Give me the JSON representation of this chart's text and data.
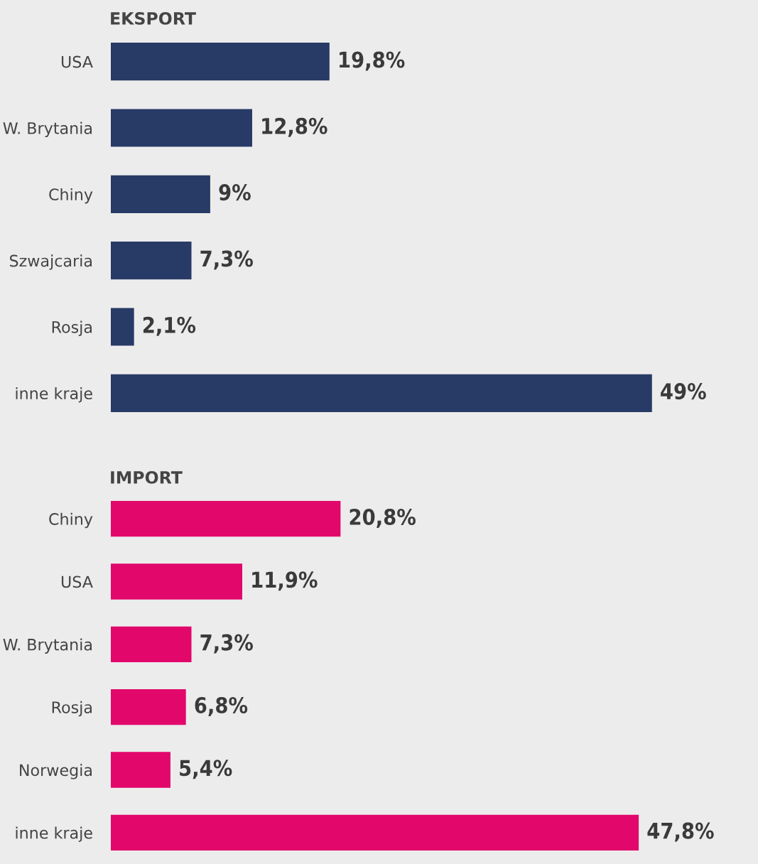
{
  "chart_data": [
    {
      "type": "bar",
      "orientation": "horizontal",
      "title": "EKSPORT",
      "categories": [
        "USA",
        "W. Brytania",
        "Chiny",
        "Szwajcaria",
        "Rosja",
        "inne kraje"
      ],
      "values": [
        19.8,
        12.8,
        9,
        7.3,
        2.1,
        49
      ],
      "value_labels": [
        "19,8%",
        "12,8%",
        "9%",
        "7,3%",
        "2,1%",
        "49%"
      ],
      "color": "#283a66",
      "xlim": [
        0,
        58.6
      ],
      "tick_labels": "y"
    },
    {
      "type": "bar",
      "orientation": "horizontal",
      "title": "IMPORT",
      "categories": [
        "Chiny",
        "USA",
        "W. Brytania",
        "Rosja",
        "Norwegia",
        "inne kraje"
      ],
      "values": [
        20.8,
        11.9,
        7.3,
        6.8,
        5.4,
        47.8
      ],
      "value_labels": [
        "20,8%",
        "11,9%",
        "7,3%",
        "6,8%",
        "5,4%",
        "47,8%"
      ],
      "color": "#e2076b",
      "xlim": [
        0,
        58.6
      ],
      "tick_labels": "y"
    }
  ]
}
